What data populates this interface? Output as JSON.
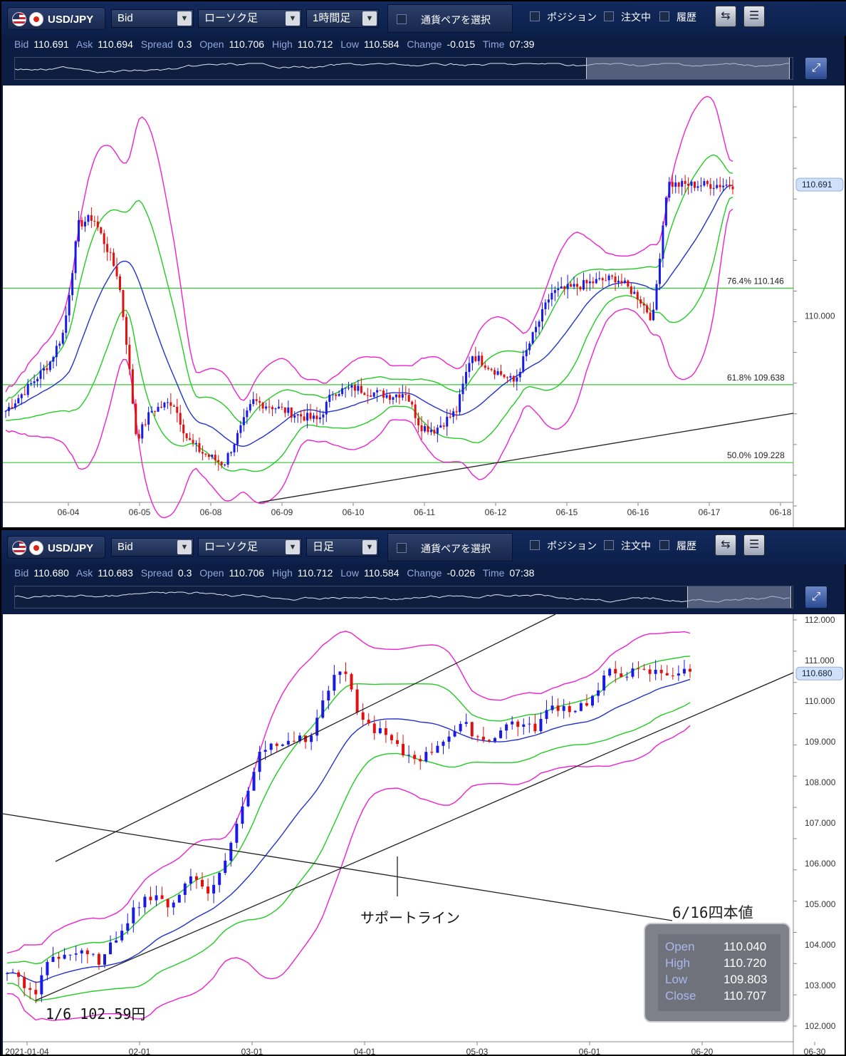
{
  "panels": [
    {
      "symbol": "USD/JPY",
      "price_type": "Bid",
      "chart_type": "ローソク足",
      "timeframe": "1時間足",
      "pair_select": "通貨ペアを選択",
      "toggles": [
        "ポジション",
        "注文中",
        "履歴"
      ],
      "quote": {
        "Bid": "110.691",
        "Ask": "110.694",
        "Spread": "0.3",
        "Open": "110.706",
        "High": "110.712",
        "Low": "110.584",
        "Change": "-0.015",
        "Time": "07:39"
      }
    },
    {
      "symbol": "USD/JPY",
      "price_type": "Bid",
      "chart_type": "ローソク足",
      "timeframe": "日足",
      "pair_select": "通貨ペアを選択",
      "toggles": [
        "ポジション",
        "注文中",
        "履歴"
      ],
      "quote": {
        "Bid": "110.680",
        "Ask": "110.683",
        "Spread": "0.3",
        "Open": "110.706",
        "High": "110.712",
        "Low": "110.584",
        "Change": "-0.026",
        "Time": "07:38"
      }
    }
  ],
  "icons": [
    "us-flag-icon",
    "jp-flag-icon",
    "chevron-down-icon",
    "checkbox-icon",
    "sync-icon",
    "list-icon",
    "expand-icon"
  ],
  "colors": {
    "bullish": "#1a1ae6",
    "bearish": "#e01010",
    "ma_mid": "#2233cc",
    "band_1sigma": "#22cc22",
    "band_2sigma": "#ee22cc",
    "fib_line": "#33cc33",
    "trend_line": "#222222"
  },
  "chart_data": [
    {
      "type": "candlestick",
      "timeframe": "1時間足",
      "x_ticks": [
        "06-04",
        "06-05",
        "06-08",
        "06-09",
        "06-10",
        "06-11",
        "06-12",
        "06-15",
        "06-16",
        "06-17",
        "06-18"
      ],
      "y_ticks": [
        "110.000"
      ],
      "current_price": "110.691",
      "fib_levels": [
        {
          "label": "76.4%",
          "value": "110.146"
        },
        {
          "label": "61.8%",
          "value": "109.638"
        },
        {
          "label": "50.0%",
          "value": "109.228"
        }
      ],
      "ylim": [
        109.0,
        111.1
      ],
      "close_path": [
        [
          0,
          109.5
        ],
        [
          0.03,
          109.62
        ],
        [
          0.06,
          109.75
        ],
        [
          0.08,
          109.92
        ],
        [
          0.1,
          110.48
        ],
        [
          0.12,
          110.52
        ],
        [
          0.14,
          110.35
        ],
        [
          0.155,
          110.2
        ],
        [
          0.165,
          109.9
        ],
        [
          0.18,
          109.35
        ],
        [
          0.2,
          109.5
        ],
        [
          0.23,
          109.55
        ],
        [
          0.25,
          109.35
        ],
        [
          0.27,
          109.28
        ],
        [
          0.3,
          109.22
        ],
        [
          0.32,
          109.38
        ],
        [
          0.34,
          109.55
        ],
        [
          0.37,
          109.52
        ],
        [
          0.4,
          109.48
        ],
        [
          0.43,
          109.45
        ],
        [
          0.45,
          109.6
        ],
        [
          0.48,
          109.62
        ],
        [
          0.5,
          109.6
        ],
        [
          0.53,
          109.58
        ],
        [
          0.55,
          109.6
        ],
        [
          0.57,
          109.42
        ],
        [
          0.59,
          109.4
        ],
        [
          0.62,
          109.5
        ],
        [
          0.64,
          109.8
        ],
        [
          0.67,
          109.72
        ],
        [
          0.7,
          109.65
        ],
        [
          0.72,
          109.85
        ],
        [
          0.75,
          110.12
        ],
        [
          0.78,
          110.15
        ],
        [
          0.81,
          110.18
        ],
        [
          0.84,
          110.2
        ],
        [
          0.87,
          110.1
        ],
        [
          0.89,
          109.98
        ],
        [
          0.91,
          110.7
        ],
        [
          0.92,
          110.69
        ]
      ]
    },
    {
      "type": "candlestick",
      "timeframe": "日足",
      "x_ticks": [
        "2021-01-04",
        "02-01",
        "03-01",
        "04-01",
        "05-03",
        "06-01",
        "06-20",
        "06-30"
      ],
      "y_ticks": [
        "112.000",
        "111.000",
        "110.000",
        "109.000",
        "108.000",
        "107.000",
        "106.000",
        "105.000",
        "104.000",
        "103.000",
        "102.000"
      ],
      "current_price": "110.680",
      "ylim": [
        102.0,
        112.0
      ],
      "close_path": [
        [
          0,
          103.4
        ],
        [
          0.04,
          102.7
        ],
        [
          0.06,
          103.7
        ],
        [
          0.1,
          103.8
        ],
        [
          0.14,
          103.6
        ],
        [
          0.17,
          104.5
        ],
        [
          0.2,
          105.2
        ],
        [
          0.24,
          105.0
        ],
        [
          0.27,
          105.7
        ],
        [
          0.3,
          105.3
        ],
        [
          0.33,
          106.6
        ],
        [
          0.37,
          108.8
        ],
        [
          0.41,
          109.1
        ],
        [
          0.44,
          109.0
        ],
        [
          0.47,
          110.3
        ],
        [
          0.49,
          110.8
        ],
        [
          0.52,
          109.5
        ],
        [
          0.55,
          109.2
        ],
        [
          0.58,
          108.7
        ],
        [
          0.61,
          108.6
        ],
        [
          0.64,
          109.1
        ],
        [
          0.67,
          109.4
        ],
        [
          0.7,
          109.0
        ],
        [
          0.74,
          109.5
        ],
        [
          0.77,
          109.3
        ],
        [
          0.8,
          109.9
        ],
        [
          0.83,
          109.8
        ],
        [
          0.86,
          110.1
        ],
        [
          0.88,
          110.7
        ]
      ]
    }
  ],
  "annotations": {
    "support_label": "サポートライン",
    "low_label": "1/6  102.59円",
    "ohlc_title": "6/16四本値",
    "ohlc": [
      {
        "k": "Open",
        "v": "110.040"
      },
      {
        "k": "High",
        "v": "110.720"
      },
      {
        "k": "Low",
        "v": "109.803"
      },
      {
        "k": "Close",
        "v": "110.707"
      }
    ]
  }
}
